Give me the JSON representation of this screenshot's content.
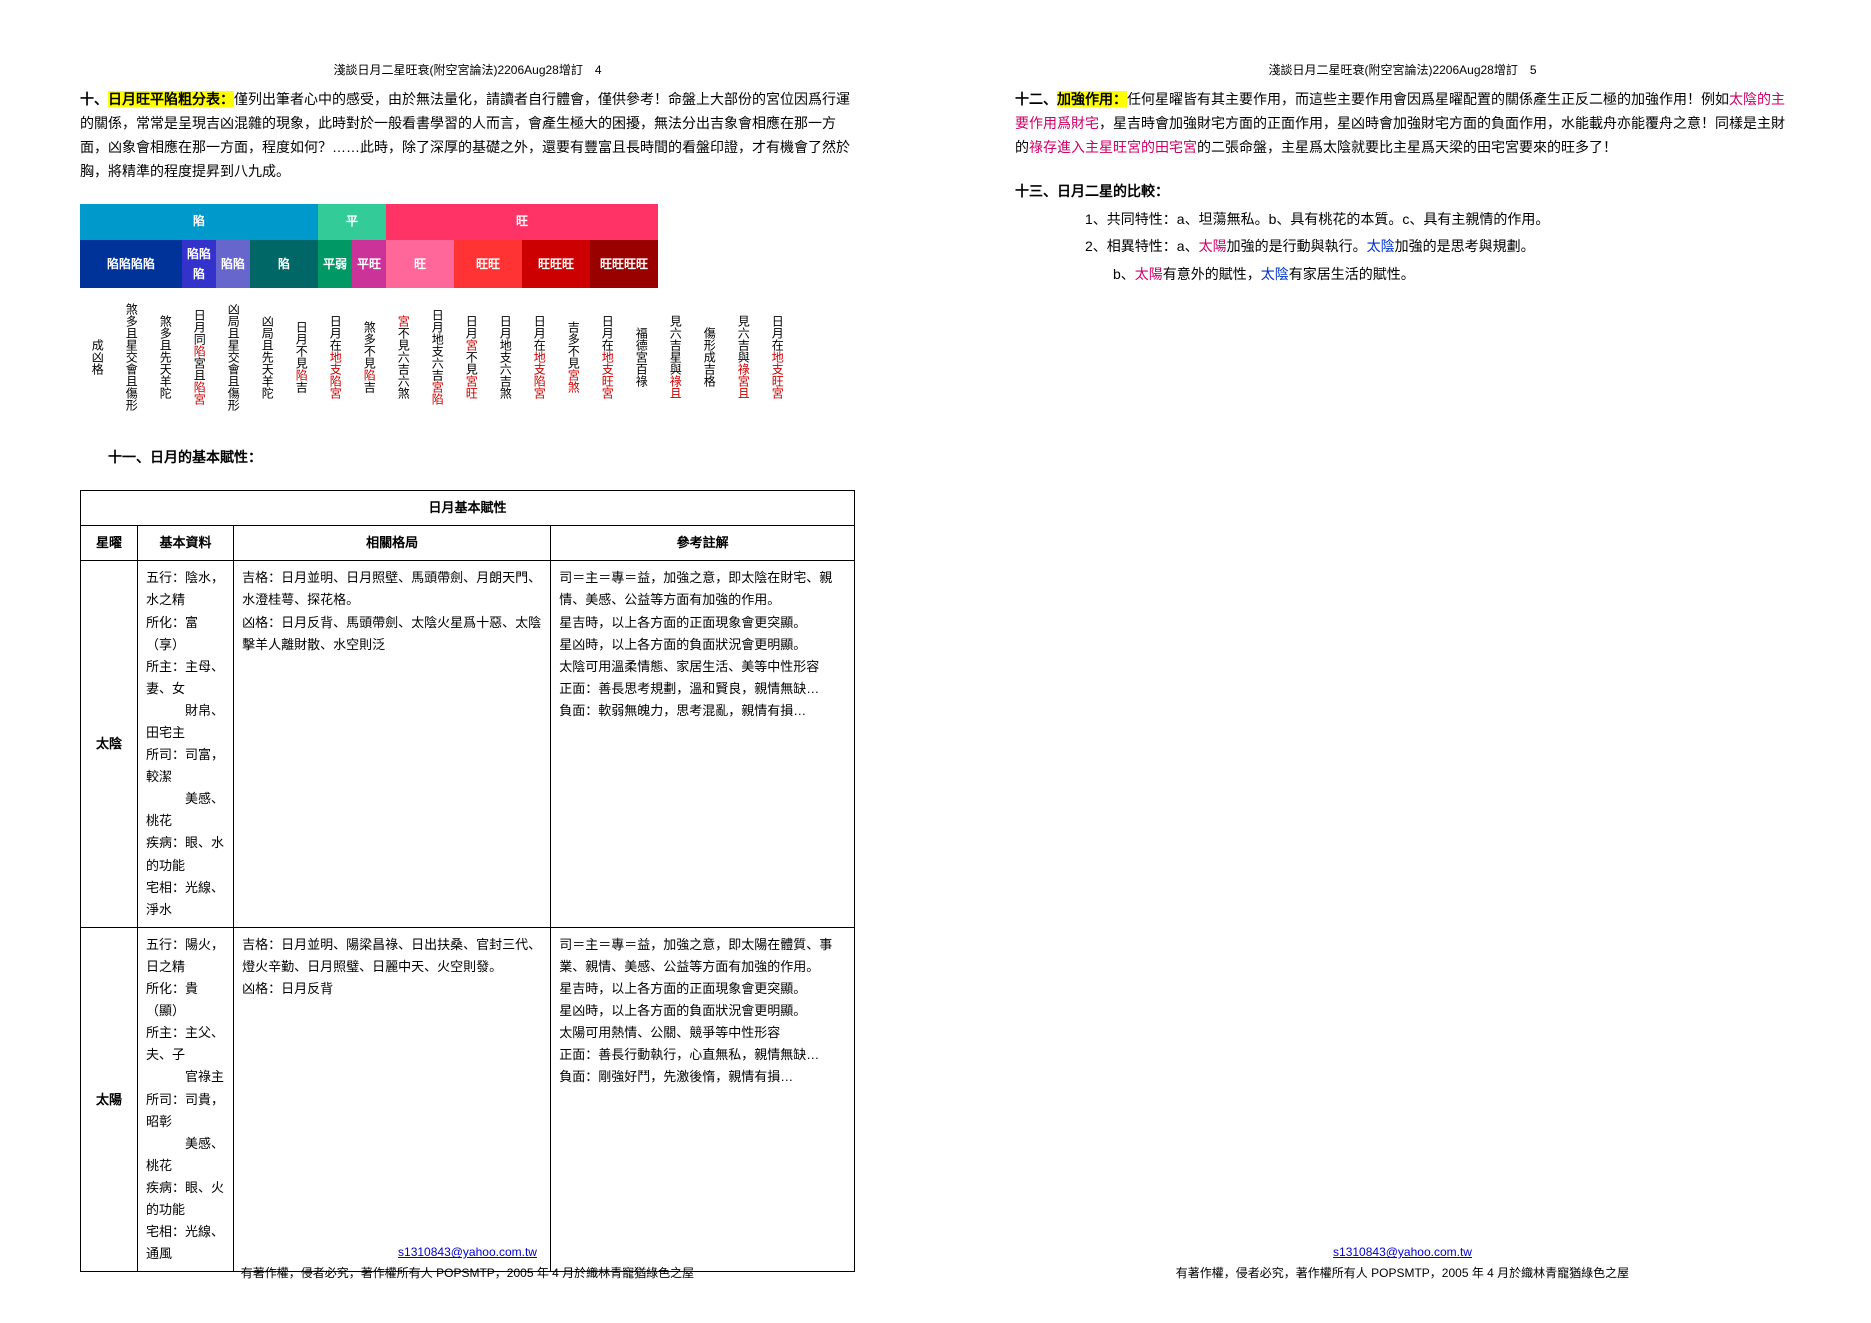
{
  "header_left": "淺談日月二星旺衰(附空宮論法)2206Aug28增訂　4",
  "header_right": "淺談日月二星旺衰(附空宮論法)2206Aug28增訂　5",
  "section10": {
    "num": "十、",
    "title_hl": "日月旺平陷粗分表：",
    "body": "僅列出筆者心中的感受，由於無法量化，請讀者自行體會，僅供參考！命盤上大部份的宮位因爲行運的關係，常常是呈現吉凶混雜的現象，此時對於一般看書學習的人而言，會產生極大的困擾，無法分出吉象會相應在那一方面，凶象會相應在那一方面，程度如何？……此時，除了深厚的基礎之外，還要有豐富且長時間的看盤印證，才有機會了然於胸，將精準的程度提昇到八九成。"
  },
  "grade": {
    "top": [
      {
        "label": "陷",
        "span": 7,
        "bg": "#0099cc"
      },
      {
        "label": "平",
        "span": 2,
        "bg": "#33cc99"
      },
      {
        "label": "旺",
        "span": 8,
        "bg": "#ff3366"
      }
    ],
    "sub": [
      {
        "label": "陷陷陷陷",
        "span": 3,
        "bg": "#003399"
      },
      {
        "label": "陷陷陷",
        "span": 1,
        "bg": "#3333cc"
      },
      {
        "label": "陷陷",
        "span": 1,
        "bg": "#6666cc"
      },
      {
        "label": "陷",
        "span": 2,
        "bg": "#006666"
      },
      {
        "label": "平弱",
        "span": 1,
        "bg": "#009966"
      },
      {
        "label": "平旺",
        "span": 1,
        "bg": "#cc3399"
      },
      {
        "label": "旺",
        "span": 2,
        "bg": "#ff6699"
      },
      {
        "label": "旺旺",
        "span": 2,
        "bg": "#ff3333"
      },
      {
        "label": "旺旺旺",
        "span": 2,
        "bg": "#cc0000"
      },
      {
        "label": "旺旺旺旺",
        "span": 2,
        "bg": "#990000"
      }
    ],
    "cols": [
      "成凶格",
      "煞多且星交會且傷形",
      "煞多且先天羊陀",
      "日月同<r>陷</r>宮且<r>陷宮</r>",
      "凶局且星交會且傷形",
      "凶局且先天羊陀",
      "日月不見<r>陷</r>吉",
      "日月在<r>地支陷宮</r>",
      "煞多不見<r>陷</r>吉",
      "<r>宮</r>不見六吉六煞",
      "日月地支六吉<r>宮陷</r>",
      "日月<r>宮</r>不見<r>宮旺</r>",
      "日月地支六吉煞",
      "日月在<r>地支陷宮</r>",
      "吉多不見<r>宮煞</r>",
      "日月在<r>地支旺宮</r>",
      "福德宮百祿",
      "見六吉星與<r>祿且</r>",
      "傷形成吉格",
      "見六吉與<r>祿宮且</r>",
      "日月在<r>地支旺宮</r>"
    ]
  },
  "section11": {
    "title": "十一、日月的基本賦性：",
    "table_caption": "日月基本賦性",
    "headers": [
      "星曜",
      "基本資料",
      "相關格局",
      "參考註解"
    ],
    "rows": [
      {
        "name": "太陰",
        "basic": "五行：陰水，水之精\n所化：富（享）\n所主：主母、妻、女\n　　　財帛、田宅主\n所司：司富，較潔\n　　　美感、桃花\n疾病：眼、水的功能\n宅相：光線、淨水",
        "geju": "吉格：日月並明、日月照壁、馬頭帶劍、月朗天門、水澄桂萼、探花格。\n凶格：日月反背、馬頭帶劍、太陰火星爲十惡、太陰擊羊人離財散、水空則泛",
        "note": "司＝主＝專＝益，加強之意，即太陰在財宅、親情、美感、公益等方面有加強的作用。\n星吉時，以上各方面的正面現象會更突顯。\n星凶時，以上各方面的負面狀況會更明顯。\n太陰可用溫柔情態、家居生活、美等中性形容\n正面：善長思考規劃，溫和賢良，親情無缺…\n負面：軟弱無魄力，思考混亂，親情有損…"
      },
      {
        "name": "太陽",
        "basic": "五行：陽火，日之精\n所化：貴（顯）\n所主：主父、夫、子\n　　　官祿主\n所司：司貴，昭彰\n　　　美感、桃花\n疾病：眼、火的功能\n宅相：光線、通風",
        "geju": "吉格：日月並明、陽梁昌祿、日出扶桑、官封三代、燈火辛勤、日月照璧、日麗中天、火空則發。\n凶格：日月反背",
        "note": "司＝主＝專＝益，加強之意，即太陽在體質、事業、親情、美感、公益等方面有加強的作用。\n星吉時，以上各方面的正面現象會更突顯。\n星凶時，以上各方面的負面狀況會更明顯。\n太陽可用熱情、公關、競爭等中性形容\n正面：善長行動執行，心直無私，親情無缺…\n負面：剛強好鬥，先激後惰，親情有損…"
      }
    ]
  },
  "section12": {
    "num": "十二、",
    "title_hl": "加強作用：",
    "body_parts": [
      {
        "t": "任何星曜皆有其主要作用，而這些主要作用會因爲星曜配置的關係產生正反二極的加強作用！例如"
      },
      {
        "t": "太陰的主要作用爲財宅",
        "cls": "red"
      },
      {
        "t": "，星吉時會加強財宅方面的正面作用，星凶時會加強財宅方面的負面作用，水能載舟亦能覆舟之意！同樣是主財的"
      },
      {
        "t": "祿存進入主星旺宮的田宅宮",
        "cls": "red"
      },
      {
        "t": "的二張命盤，主星爲太陰就要比主星爲天梁的田宅宮要來的旺多了！"
      }
    ]
  },
  "section13": {
    "title": "十三、日月二星的比較：",
    "item1": "1、共同特性：a、坦蕩無私。b、具有桃花的本質。c、具有主親情的作用。",
    "item2_pre": "2、相異特性：a、",
    "item2_sun": "太陽",
    "item2_mid": "加強的是行動與執行。",
    "item2_moon": "太陰",
    "item2_post": "加強的是思考與規劃。",
    "item2b_pre": "b、",
    "item2b_sun": "太陽",
    "item2b_mid": "有意外的賦性，",
    "item2b_moon": "太陰",
    "item2b_post": "有家居生活的賦性。"
  },
  "footer": {
    "email": "s1310843@yahoo.com.tw",
    "copyright": "有著作權，侵者必究，著作權所有人 POPSMTP，2005 年 4 月於織林青寵猶綠色之屋"
  }
}
